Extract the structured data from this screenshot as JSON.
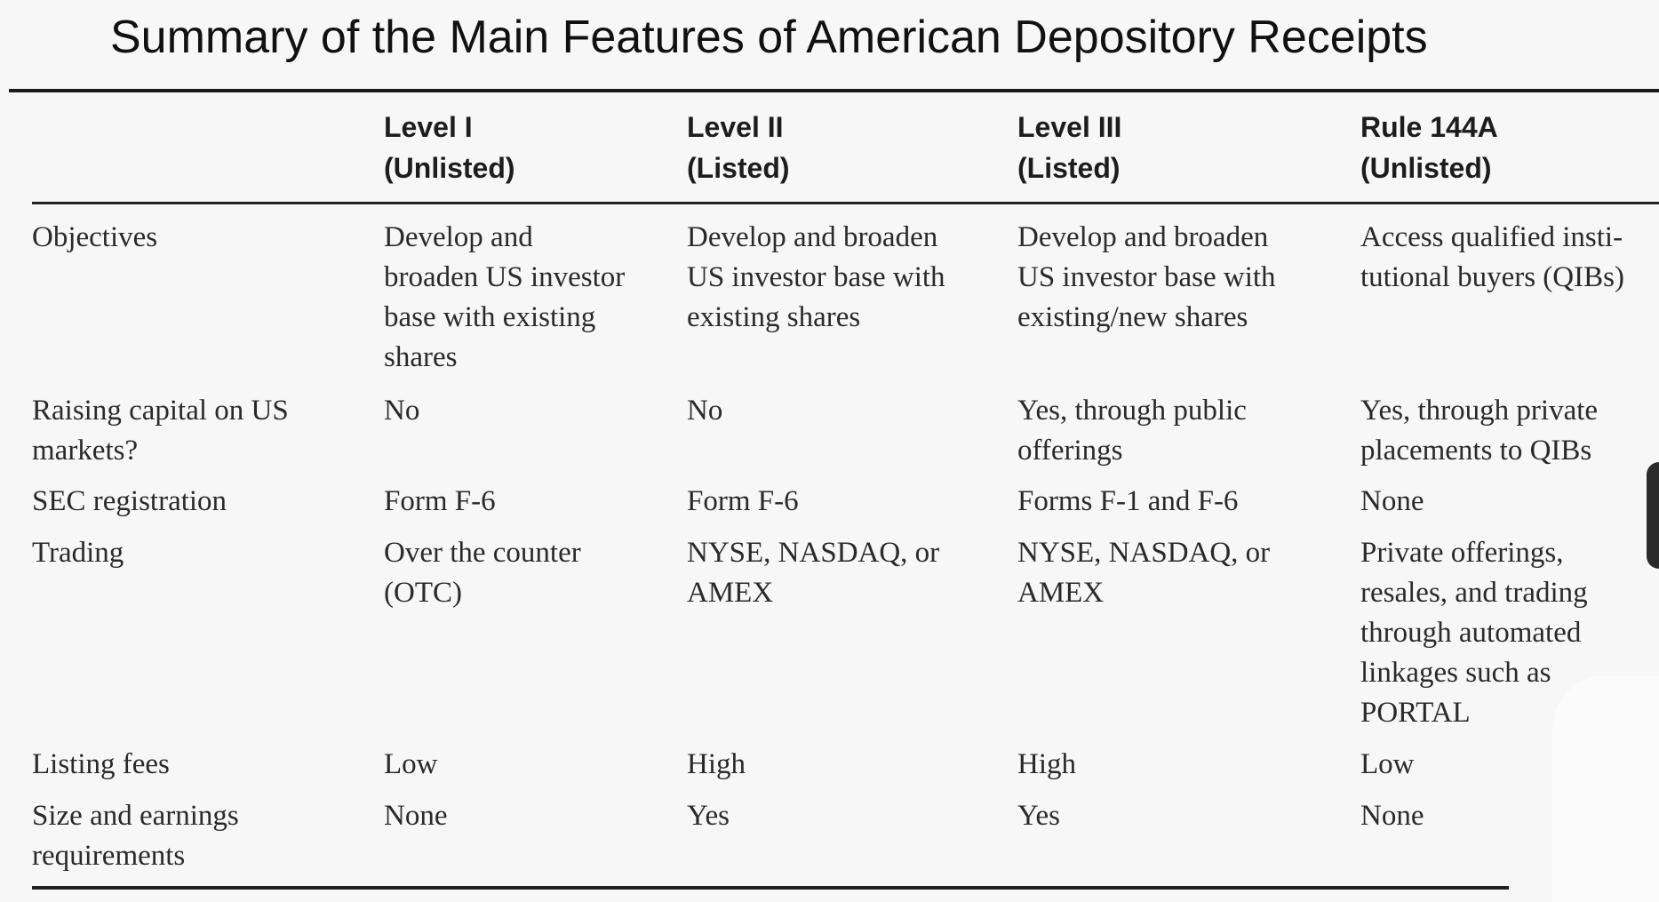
{
  "title": "Summary of the Main Features of American Depository Receipts",
  "columns": [
    {
      "line1": "",
      "line2": ""
    },
    {
      "line1": "Level I",
      "line2": "(Unlisted)"
    },
    {
      "line1": "Level II",
      "line2": "(Listed)"
    },
    {
      "line1": "Level III",
      "line2": "(Listed)"
    },
    {
      "line1": "Rule 144A",
      "line2": "(Unlisted)"
    }
  ],
  "rows": [
    {
      "cells": [
        "Objectives",
        "Develop and\nbroaden US investor\nbase with existing\nshares",
        "Develop and broaden\nUS investor base with\nexisting shares",
        "Develop and broaden\nUS investor base with\nexisting/new shares",
        "Access qualified insti-\ntutional buyers (QIBs)"
      ]
    },
    {
      "cells": [
        "Raising capital on US\nmarkets?",
        "No",
        "No",
        "Yes, through public\nofferings",
        "Yes, through private\nplacements to QIBs"
      ]
    },
    {
      "cells": [
        "SEC registration",
        "Form F-6",
        "Form F-6",
        "Forms F-1 and F-6",
        "None"
      ]
    },
    {
      "cells": [
        "Trading",
        "Over the counter\n(OTC)",
        "NYSE, NASDAQ, or\nAMEX",
        "NYSE, NASDAQ, or\nAMEX",
        "Private offerings,\nresales, and trading\nthrough automated\nlinkages such as\nPORTAL"
      ]
    },
    {
      "cells": [
        "Listing fees",
        "Low",
        "High",
        "High",
        "Low"
      ]
    },
    {
      "cells": [
        "Size and earnings\nrequirements",
        "None",
        "Yes",
        "Yes",
        "None"
      ]
    }
  ]
}
